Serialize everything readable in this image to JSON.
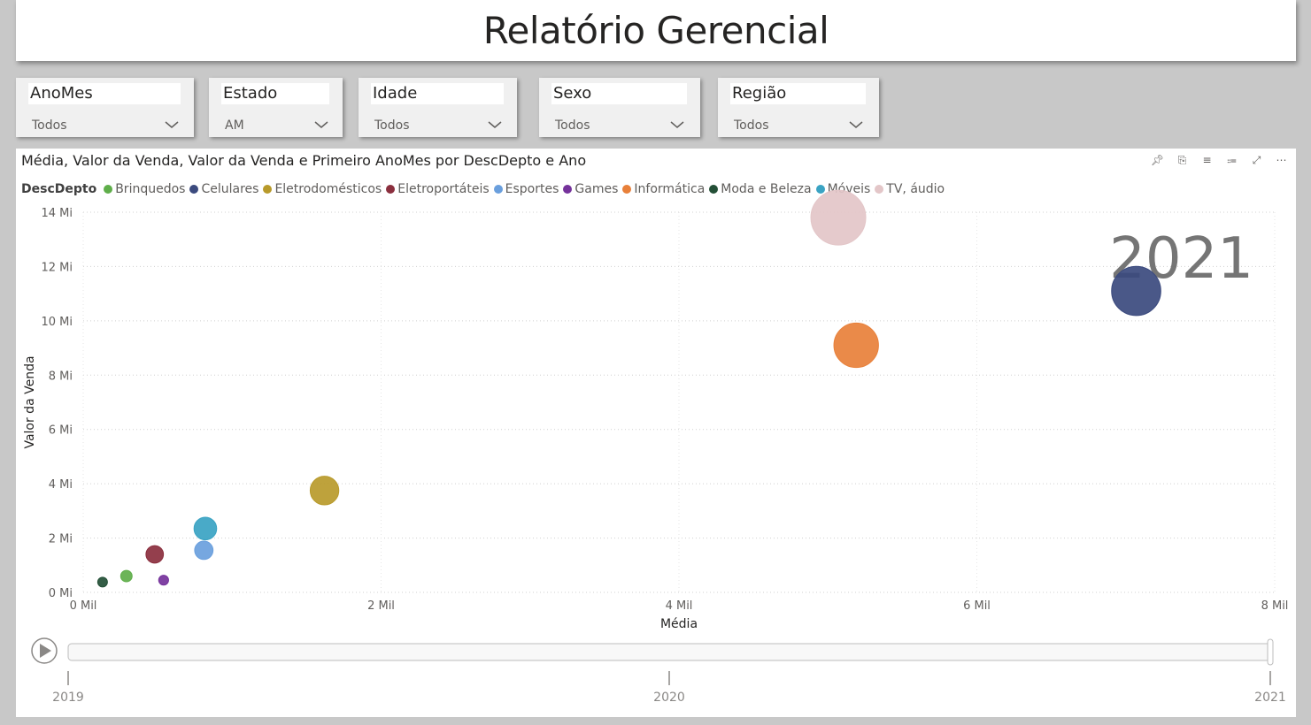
{
  "report": {
    "title": "Relatório Gerencial"
  },
  "slicers": [
    {
      "label": "AnoMes",
      "value": "Todos"
    },
    {
      "label": "Estado",
      "value": "AM"
    },
    {
      "label": "Idade",
      "value": "Todos"
    },
    {
      "label": "Sexo",
      "value": "Todos"
    },
    {
      "label": "Região",
      "value": "Todos"
    }
  ],
  "visual": {
    "title": "Média, Valor da Venda, Valor da Venda e Primeiro AnoMes por DescDepto e Ano",
    "header_icons": [
      "pin-icon",
      "copy-icon",
      "filter-icon",
      "focus-icon",
      "expand-icon",
      "more-icon"
    ],
    "play_axis_current": "2021"
  },
  "chart_data": {
    "type": "scatter",
    "xlabel": "Média",
    "ylabel": "Valor da Venda",
    "legend_title": "DescDepto",
    "legend_position": "top-left",
    "grid": true,
    "xlim": [
      0,
      8000
    ],
    "ylim": [
      0,
      14000000
    ],
    "x_ticks": [
      0,
      2000,
      4000,
      6000,
      8000
    ],
    "x_tick_labels": [
      "0 Mil",
      "2 Mil",
      "4 Mil",
      "6 Mil",
      "8 Mil"
    ],
    "y_ticks": [
      0,
      2000000,
      4000000,
      6000000,
      8000000,
      10000000,
      12000000,
      14000000
    ],
    "y_tick_labels": [
      "0 Mi",
      "2 Mi",
      "4 Mi",
      "6 Mi",
      "8 Mi",
      "10 Mi",
      "12 Mi",
      "14 Mi"
    ],
    "series": [
      {
        "name": "Brinquedos",
        "color": "#5fae4a",
        "x": 290,
        "y": 600000,
        "size": 600000
      },
      {
        "name": "Celulares",
        "color": "#3b4a7e",
        "x": 7070,
        "y": 11100000,
        "size": 11100000
      },
      {
        "name": "Eletrodomésticos",
        "color": "#b89a2b",
        "x": 1620,
        "y": 3750000,
        "size": 3750000
      },
      {
        "name": "Eletroportáteis",
        "color": "#8b2f3e",
        "x": 480,
        "y": 1400000,
        "size": 1400000
      },
      {
        "name": "Esportes",
        "color": "#6a9fdd",
        "x": 810,
        "y": 1550000,
        "size": 1550000
      },
      {
        "name": "Games",
        "color": "#75329b",
        "x": 540,
        "y": 450000,
        "size": 450000
      },
      {
        "name": "Informática",
        "color": "#e8803a",
        "x": 5190,
        "y": 9100000,
        "size": 9100000
      },
      {
        "name": "Moda e Beleza",
        "color": "#234f36",
        "x": 130,
        "y": 380000,
        "size": 380000
      },
      {
        "name": "Móveis",
        "color": "#3aa3c3",
        "x": 820,
        "y": 2350000,
        "size": 2350000
      },
      {
        "name": "TV, áudio",
        "color": "#e3c6c8",
        "x": 5070,
        "y": 13800000,
        "size": 13800000
      }
    ],
    "play_axis": {
      "ticks": [
        "2019",
        "2020",
        "2021"
      ],
      "current": "2021"
    }
  }
}
